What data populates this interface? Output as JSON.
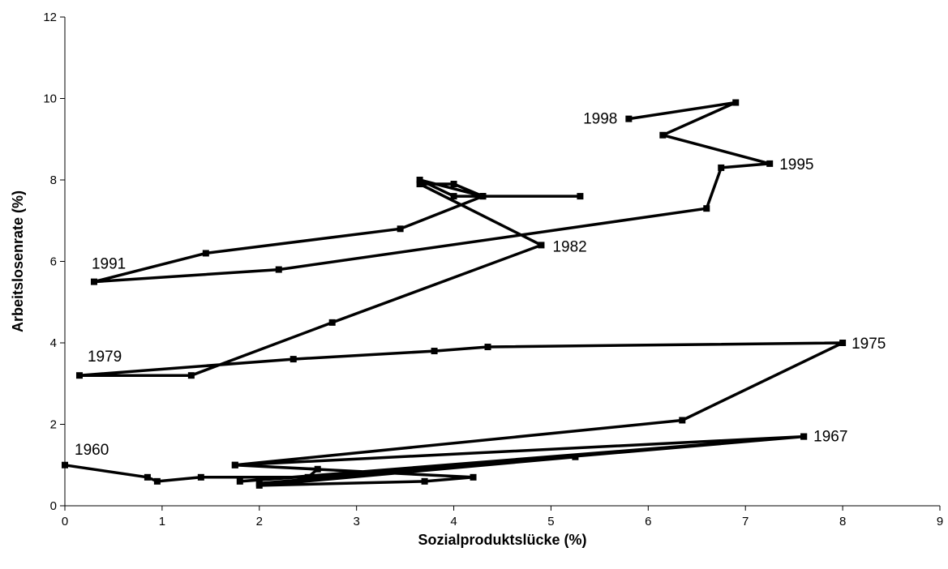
{
  "chart_data": {
    "type": "line",
    "xlabel": "Sozialproduktslücke (%)",
    "ylabel": "Arbeitslosenrate (%)",
    "xlim": [
      0,
      9
    ],
    "ylim": [
      0,
      12
    ],
    "xticks": [
      0,
      1,
      2,
      3,
      4,
      5,
      6,
      7,
      8,
      9
    ],
    "yticks": [
      0,
      2,
      4,
      6,
      8,
      10,
      12
    ],
    "grid": false,
    "legend": "none",
    "series": [
      {
        "points": [
          [
            0.0,
            1.0
          ],
          [
            0.85,
            0.7
          ],
          [
            0.95,
            0.6
          ],
          [
            1.4,
            0.7
          ],
          [
            2.5,
            0.7
          ],
          [
            2.6,
            0.9
          ],
          [
            1.75,
            1.0
          ],
          [
            4.2,
            0.7
          ],
          [
            3.7,
            0.6
          ],
          [
            2.0,
            0.5
          ],
          [
            5.25,
            1.2
          ],
          [
            1.8,
            0.6
          ],
          [
            7.6,
            1.7
          ],
          [
            2.0,
            0.55
          ],
          [
            7.6,
            1.7
          ],
          [
            1.75,
            1.0
          ],
          [
            6.35,
            2.1
          ],
          [
            8.0,
            4.0
          ],
          [
            4.35,
            3.9
          ],
          [
            3.8,
            3.8
          ],
          [
            2.35,
            3.6
          ],
          [
            0.15,
            3.2
          ],
          [
            1.3,
            3.2
          ],
          [
            2.75,
            4.5
          ],
          [
            4.9,
            6.4
          ],
          [
            3.65,
            7.9
          ],
          [
            4.0,
            7.9
          ],
          [
            4.3,
            7.6
          ],
          [
            5.3,
            7.6
          ],
          [
            4.0,
            7.6
          ],
          [
            3.65,
            8.0
          ],
          [
            4.3,
            7.6
          ],
          [
            3.45,
            6.8
          ],
          [
            1.45,
            6.2
          ],
          [
            0.3,
            5.5
          ],
          [
            2.2,
            5.8
          ],
          [
            6.6,
            7.3
          ],
          [
            6.75,
            8.3
          ],
          [
            7.25,
            8.4
          ],
          [
            6.15,
            9.1
          ],
          [
            6.9,
            9.9
          ],
          [
            5.8,
            9.5
          ]
        ]
      }
    ],
    "annotations": [
      {
        "text": "1960",
        "x": 0.0,
        "y": 1.0
      },
      {
        "text": "1967",
        "x": 7.6,
        "y": 1.7
      },
      {
        "text": "1975",
        "x": 8.0,
        "y": 4.0
      },
      {
        "text": "1979",
        "x": 0.15,
        "y": 3.2
      },
      {
        "text": "1982",
        "x": 4.9,
        "y": 6.4
      },
      {
        "text": "1991",
        "x": 0.3,
        "y": 5.5
      },
      {
        "text": "1995",
        "x": 7.25,
        "y": 8.4
      },
      {
        "text": "1998",
        "x": 5.8,
        "y": 9.5
      }
    ],
    "colors": {
      "line": "#000000",
      "axis": "#000000",
      "background": "#ffffff"
    }
  }
}
